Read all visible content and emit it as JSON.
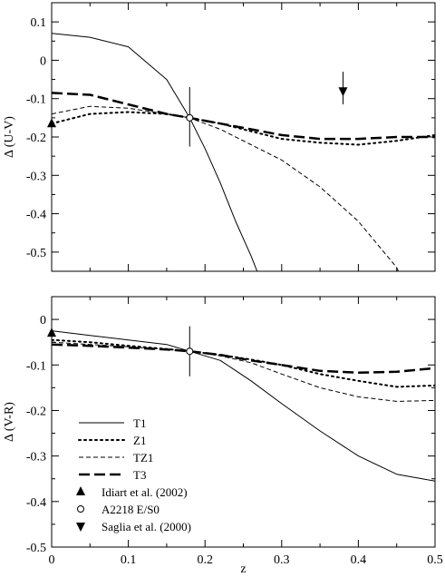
{
  "chart_data": [
    {
      "type": "line",
      "ylabel": "Δ (U-V)",
      "xlim": [
        0,
        0.5
      ],
      "ylim": [
        -0.55,
        0.15
      ],
      "xticks": [
        0,
        0.1,
        0.2,
        0.3,
        0.4,
        0.5
      ],
      "xtick_labels": [
        "",
        "",
        "",
        "",
        "",
        ""
      ],
      "yticks": [
        0.1,
        0,
        -0.1,
        -0.2,
        -0.3,
        -0.4,
        -0.5
      ],
      "ytick_labels": [
        "0.1",
        "0",
        "-0.1",
        "-0.2",
        "-0.3",
        "-0.4",
        "-0.5"
      ],
      "series": [
        {
          "name": "T1",
          "style": "solid",
          "x": [
            0,
            0.05,
            0.1,
            0.15,
            0.18,
            0.2,
            0.22,
            0.24,
            0.26,
            0.268
          ],
          "y": [
            0.07,
            0.06,
            0.035,
            -0.05,
            -0.15,
            -0.23,
            -0.32,
            -0.42,
            -0.51,
            -0.55
          ]
        },
        {
          "name": "Z1",
          "style": "dotted",
          "x": [
            0,
            0.05,
            0.1,
            0.15,
            0.18,
            0.22,
            0.26,
            0.3,
            0.35,
            0.4,
            0.45,
            0.5
          ],
          "y": [
            -0.165,
            -0.14,
            -0.135,
            -0.14,
            -0.15,
            -0.165,
            -0.185,
            -0.205,
            -0.215,
            -0.22,
            -0.21,
            -0.195
          ]
        },
        {
          "name": "TZ1",
          "style": "dashed",
          "x": [
            0,
            0.05,
            0.1,
            0.15,
            0.18,
            0.22,
            0.26,
            0.3,
            0.35,
            0.4,
            0.45,
            0.452
          ],
          "y": [
            -0.14,
            -0.12,
            -0.125,
            -0.14,
            -0.15,
            -0.18,
            -0.22,
            -0.26,
            -0.33,
            -0.42,
            -0.54,
            -0.55
          ]
        },
        {
          "name": "T3",
          "style": "long-dash",
          "x": [
            0,
            0.05,
            0.1,
            0.15,
            0.18,
            0.22,
            0.26,
            0.3,
            0.35,
            0.4,
            0.45,
            0.5
          ],
          "y": [
            -0.085,
            -0.09,
            -0.115,
            -0.14,
            -0.15,
            -0.165,
            -0.18,
            -0.195,
            -0.205,
            -0.205,
            -0.2,
            -0.2
          ]
        }
      ],
      "points": [
        {
          "marker": "triangle-up-filled",
          "x": 0,
          "y": -0.165,
          "err_low": -0.215,
          "err_high": -0.115
        },
        {
          "marker": "circle-open",
          "x": 0.18,
          "y": -0.15,
          "err_low": -0.225,
          "err_high": -0.07
        },
        {
          "marker": "triangle-down-filled",
          "x": 0.38,
          "y": -0.08,
          "err_high": -0.03,
          "err_low": -0.115
        }
      ]
    },
    {
      "type": "line",
      "xlabel": "z",
      "ylabel": "Δ (V-R)",
      "xlim": [
        0,
        0.5
      ],
      "ylim": [
        -0.5,
        0.05
      ],
      "xticks": [
        0,
        0.1,
        0.2,
        0.3,
        0.4,
        0.5
      ],
      "xtick_labels": [
        "0",
        "0.1",
        "0.2",
        "0.3",
        "0.4",
        "0.5"
      ],
      "yticks": [
        0,
        -0.1,
        -0.2,
        -0.3,
        -0.4,
        -0.5
      ],
      "ytick_labels": [
        "0",
        "-0.1",
        "-0.2",
        "-0.3",
        "-0.4",
        "-0.5"
      ],
      "series": [
        {
          "name": "T1",
          "style": "solid",
          "x": [
            0,
            0.05,
            0.1,
            0.15,
            0.18,
            0.22,
            0.26,
            0.3,
            0.35,
            0.4,
            0.45,
            0.5
          ],
          "y": [
            -0.025,
            -0.035,
            -0.045,
            -0.055,
            -0.07,
            -0.09,
            -0.135,
            -0.185,
            -0.245,
            -0.3,
            -0.34,
            -0.355
          ]
        },
        {
          "name": "Z1",
          "style": "dotted",
          "x": [
            0,
            0.05,
            0.1,
            0.15,
            0.18,
            0.22,
            0.26,
            0.3,
            0.35,
            0.4,
            0.45,
            0.5
          ],
          "y": [
            -0.045,
            -0.05,
            -0.058,
            -0.065,
            -0.07,
            -0.078,
            -0.088,
            -0.1,
            -0.12,
            -0.135,
            -0.148,
            -0.145
          ]
        },
        {
          "name": "TZ1",
          "style": "dashed",
          "x": [
            0,
            0.05,
            0.1,
            0.15,
            0.18,
            0.22,
            0.26,
            0.3,
            0.35,
            0.4,
            0.45,
            0.5
          ],
          "y": [
            -0.05,
            -0.055,
            -0.06,
            -0.066,
            -0.07,
            -0.08,
            -0.095,
            -0.12,
            -0.15,
            -0.17,
            -0.18,
            -0.178
          ]
        },
        {
          "name": "T3",
          "style": "long-dash",
          "x": [
            0,
            0.05,
            0.1,
            0.15,
            0.18,
            0.22,
            0.26,
            0.3,
            0.35,
            0.4,
            0.45,
            0.5
          ],
          "y": [
            -0.055,
            -0.058,
            -0.062,
            -0.066,
            -0.07,
            -0.078,
            -0.09,
            -0.1,
            -0.113,
            -0.117,
            -0.115,
            -0.107
          ]
        }
      ],
      "points": [
        {
          "marker": "triangle-up-filled",
          "x": 0,
          "y": -0.03,
          "err_low": -0.055,
          "err_high": 0.0
        },
        {
          "marker": "circle-open",
          "x": 0.18,
          "y": -0.07,
          "err_low": -0.125,
          "err_high": -0.015
        }
      ],
      "legend": {
        "placement": "lower-left",
        "entries": [
          {
            "label": "T1",
            "kind": "line",
            "style": "solid"
          },
          {
            "label": "Z1",
            "kind": "line",
            "style": "dotted"
          },
          {
            "label": "TZ1",
            "kind": "line",
            "style": "dashed"
          },
          {
            "label": "T3",
            "kind": "line",
            "style": "long-dash"
          },
          {
            "label": "Idiart et al. (2002)",
            "kind": "marker",
            "marker": "triangle-up-filled"
          },
          {
            "label": "A2218 E/S0",
            "kind": "marker",
            "marker": "circle-open"
          },
          {
            "label": "Saglia et al. (2000)",
            "kind": "marker",
            "marker": "triangle-down-filled"
          }
        ]
      }
    }
  ]
}
